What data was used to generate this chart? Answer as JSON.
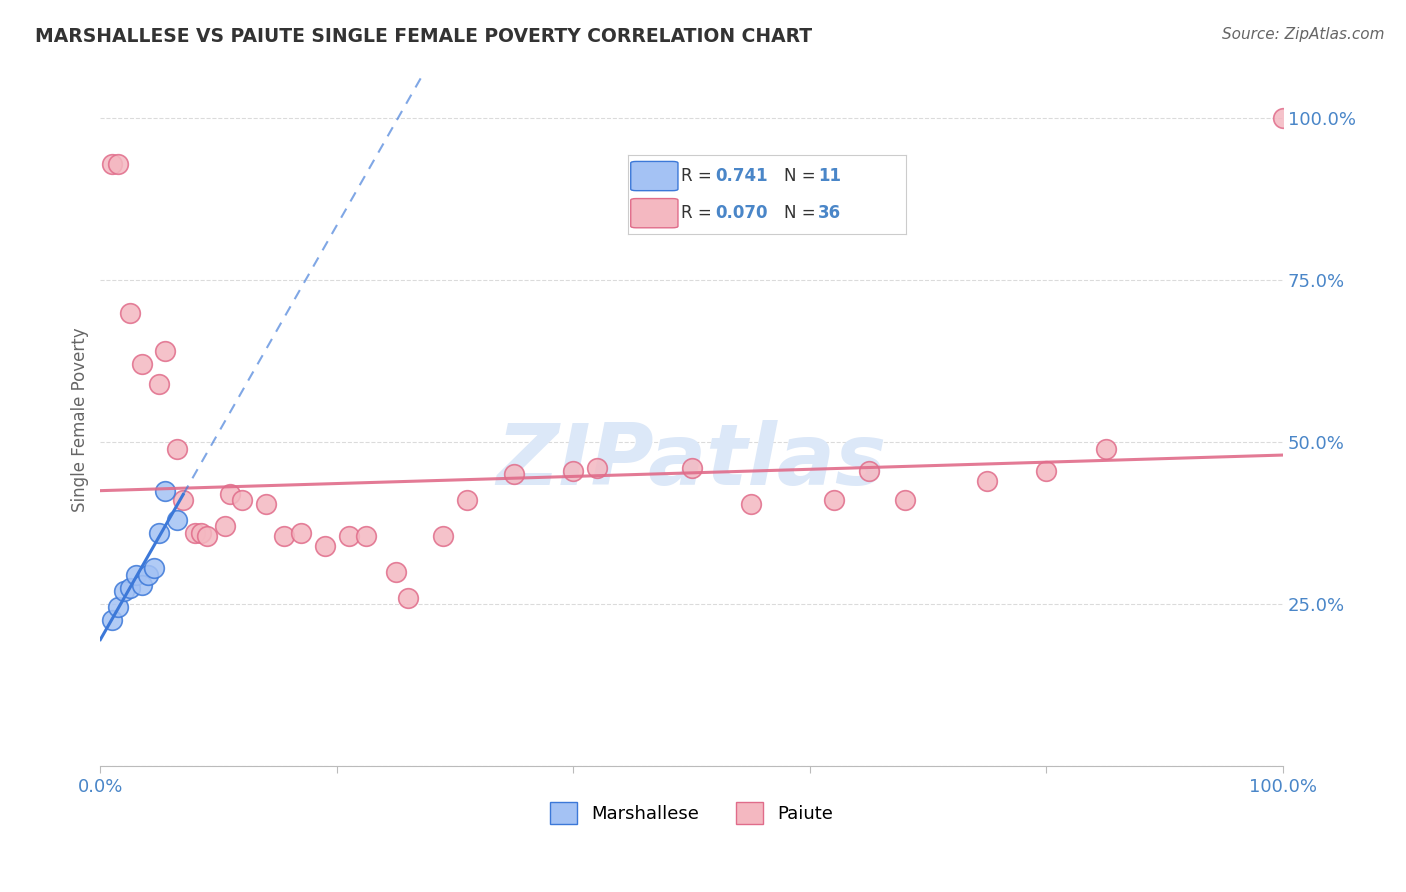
{
  "title": "MARSHALLESE VS PAIUTE SINGLE FEMALE POVERTY CORRELATION CHART",
  "source": "Source: ZipAtlas.com",
  "ylabel": "Single Female Poverty",
  "xlabel": "",
  "marshallese_R": 0.741,
  "marshallese_N": 11,
  "paiute_R": 0.07,
  "paiute_N": 36,
  "marshallese_color": "#a4c2f4",
  "paiute_color": "#f4b8c1",
  "marshallese_line_color": "#3c78d8",
  "paiute_line_color": "#e06c8a",
  "background_color": "#ffffff",
  "grid_color": "#cccccc",
  "title_color": "#333333",
  "source_color": "#666666",
  "axis_label_color": "#4a86c8",
  "watermark_color": "#dce8f8",
  "marshallese_x": [
    1.0,
    1.5,
    2.0,
    2.5,
    3.0,
    3.5,
    4.0,
    4.5,
    5.0,
    5.5,
    6.5
  ],
  "marshallese_y": [
    0.225,
    0.245,
    0.27,
    0.275,
    0.295,
    0.28,
    0.295,
    0.305,
    0.36,
    0.425,
    0.38
  ],
  "paiute_x": [
    1.0,
    1.5,
    2.5,
    3.5,
    5.0,
    5.5,
    6.5,
    7.0,
    8.0,
    8.5,
    9.0,
    10.5,
    11.0,
    12.0,
    14.0,
    15.5,
    17.0,
    19.0,
    21.0,
    22.5,
    25.0,
    26.0,
    29.0,
    31.0,
    35.0,
    40.0,
    42.0,
    50.0,
    55.0,
    62.0,
    65.0,
    68.0,
    75.0,
    80.0,
    85.0,
    100.0
  ],
  "paiute_y": [
    0.93,
    0.93,
    0.7,
    0.62,
    0.59,
    0.64,
    0.49,
    0.41,
    0.36,
    0.36,
    0.355,
    0.37,
    0.42,
    0.41,
    0.405,
    0.355,
    0.36,
    0.34,
    0.355,
    0.355,
    0.3,
    0.26,
    0.355,
    0.41,
    0.45,
    0.455,
    0.46,
    0.46,
    0.405,
    0.41,
    0.455,
    0.41,
    0.44,
    0.455,
    0.49,
    1.0
  ],
  "xlim": [
    0,
    100
  ],
  "ylim": [
    0,
    1.07
  ],
  "yticks": [
    0.0,
    0.25,
    0.5,
    0.75,
    1.0
  ],
  "ytick_labels": [
    "",
    "25.0%",
    "50.0%",
    "75.0%",
    "100.0%"
  ],
  "figsize": [
    14.06,
    8.92
  ],
  "dpi": 100,
  "marsh_line_intercept": 0.195,
  "marsh_line_slope": 0.032,
  "paiute_line_intercept": 0.425,
  "paiute_line_slope": 0.00055
}
